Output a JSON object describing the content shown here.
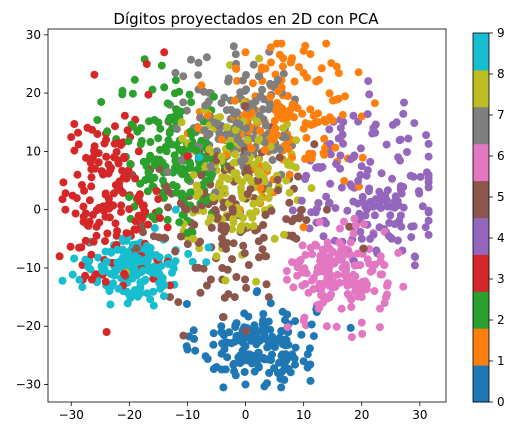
{
  "chart_data": {
    "type": "scatter",
    "title": "Dígitos proyectados en 2D con PCA",
    "xlabel": "",
    "ylabel": "",
    "xlim": [
      -34,
      34.5
    ],
    "ylim": [
      -33,
      31
    ],
    "x_ticks": [
      -30,
      -20,
      -10,
      0,
      10,
      20,
      30
    ],
    "y_ticks": [
      -30,
      -20,
      -10,
      0,
      10,
      20,
      30
    ],
    "x_tick_labels": [
      "−30",
      "−20",
      "−10",
      "0",
      "10",
      "20",
      "30"
    ],
    "y_tick_labels": [
      "−30",
      "−20",
      "−10",
      "0",
      "10",
      "20",
      "30"
    ],
    "grid": false,
    "colorbar": {
      "ticks": [
        0,
        1,
        2,
        3,
        4,
        5,
        6,
        7,
        8,
        9
      ],
      "tick_labels": [
        "0",
        "1",
        "2",
        "3",
        "4",
        "5",
        "6",
        "7",
        "8",
        "9"
      ],
      "colormap": "tab10",
      "colors": [
        "#1f77b4",
        "#ff7f0e",
        "#2ca02c",
        "#d62728",
        "#9467bd",
        "#8c564b",
        "#e377c2",
        "#7f7f7f",
        "#bcbd22",
        "#17becf"
      ]
    },
    "series": [
      {
        "label": "0",
        "color": "#1f77b4",
        "center": [
          2,
          -23
        ],
        "spread": [
          5,
          3.5
        ],
        "count": 170,
        "points": [
          [
            -10,
            -24
          ],
          [
            0,
            -30
          ],
          [
            10,
            -26
          ],
          [
            -5,
            -27
          ],
          [
            3,
            -19
          ],
          [
            6,
            -29
          ]
        ]
      },
      {
        "label": "1",
        "color": "#ff7f0e",
        "center": [
          7,
          16
        ],
        "spread": [
          6,
          7
        ],
        "count": 170,
        "points": [
          [
            0,
            27
          ],
          [
            8,
            26
          ],
          [
            16,
            19
          ],
          [
            20,
            16
          ],
          [
            10,
            -3
          ],
          [
            -1,
            0
          ]
        ]
      },
      {
        "label": "2",
        "color": "#2ca02c",
        "center": [
          -12,
          9
        ],
        "spread": [
          5,
          6
        ],
        "count": 170,
        "points": [
          [
            -18,
            14
          ],
          [
            -14,
            21
          ],
          [
            -16,
            4
          ],
          [
            -10,
            -4
          ],
          [
            -6,
            2
          ]
        ]
      },
      {
        "label": "3",
        "color": "#d62728",
        "center": [
          -23,
          2
        ],
        "spread": [
          4.5,
          7
        ],
        "count": 170,
        "points": [
          [
            -31,
            0
          ],
          [
            -32,
            -8
          ],
          [
            -28,
            -12
          ],
          [
            -14,
            27
          ],
          [
            -17,
            25
          ],
          [
            -24,
            12
          ],
          [
            -13,
            -13
          ]
        ]
      },
      {
        "label": "4",
        "color": "#9467bd",
        "center": [
          22,
          4
        ],
        "spread": [
          6,
          7
        ],
        "count": 170,
        "points": [
          [
            31,
            -3
          ],
          [
            27,
            -7
          ],
          [
            14,
            11
          ],
          [
            22,
            14
          ],
          [
            26,
            15
          ],
          [
            20,
            -5
          ]
        ]
      },
      {
        "label": "5",
        "color": "#8c564b",
        "center": [
          -3,
          -2
        ],
        "spread": [
          8,
          7
        ],
        "count": 170,
        "points": [
          [
            -13,
            -15
          ],
          [
            -4,
            -12
          ],
          [
            4,
            -15
          ],
          [
            -8,
            10
          ],
          [
            8,
            -2
          ],
          [
            14,
            0
          ]
        ]
      },
      {
        "label": "6",
        "color": "#e377c2",
        "center": [
          16,
          -11
        ],
        "spread": [
          4,
          4
        ],
        "count": 170,
        "points": [
          [
            10,
            -19
          ],
          [
            14,
            -20
          ],
          [
            22,
            -4
          ],
          [
            12,
            -6
          ],
          [
            20,
            -15
          ],
          [
            8,
            -9
          ]
        ]
      },
      {
        "label": "7",
        "color": "#7f7f7f",
        "center": [
          -1,
          15
        ],
        "spread": [
          5,
          5
        ],
        "count": 170,
        "points": [
          [
            -3,
            22
          ],
          [
            -6,
            20
          ],
          [
            5,
            21
          ],
          [
            -13,
            18
          ],
          [
            -8,
            9
          ],
          [
            8,
            11
          ]
        ]
      },
      {
        "label": "8",
        "color": "#bcbd22",
        "center": [
          -1,
          6
        ],
        "spread": [
          5,
          6
        ],
        "count": 170,
        "points": [
          [
            -9,
            -5
          ],
          [
            5,
            -5
          ],
          [
            -11,
            15
          ],
          [
            -5,
            -8
          ],
          [
            7,
            5
          ]
        ]
      },
      {
        "label": "9",
        "color": "#17becf",
        "center": [
          -19,
          -10
        ],
        "spread": [
          4,
          2.5
        ],
        "count": 170,
        "points": [
          [
            -24,
            -13
          ],
          [
            -14,
            -13
          ],
          [
            -12,
            0
          ],
          [
            -18,
            -7
          ],
          [
            -21,
            -14
          ],
          [
            -8,
            9
          ]
        ]
      }
    ]
  }
}
